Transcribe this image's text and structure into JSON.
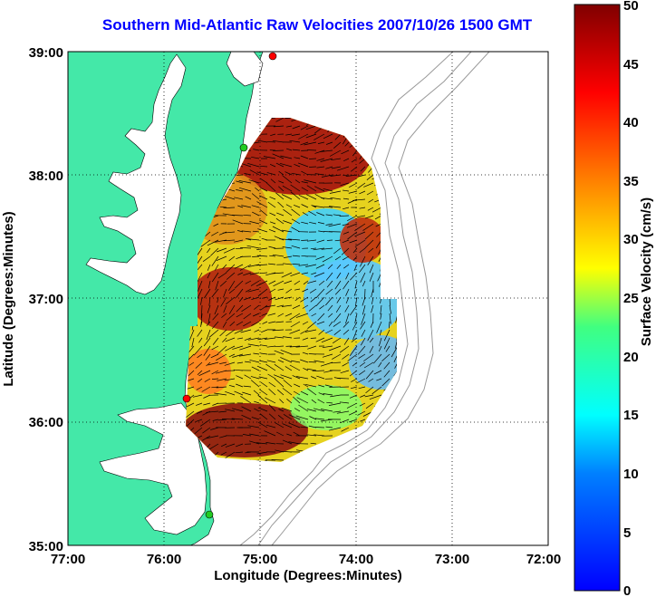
{
  "title": "Southern Mid-Atlantic Raw Velocities 2007/10/26 1500 GMT",
  "map": {
    "xlabel": "Longitude (Degrees:Minutes)",
    "ylabel": "Latitude (Degrees:Minutes)",
    "lon_range": [
      -77,
      -72
    ],
    "lat_range": [
      35,
      39
    ],
    "x_ticks": [
      "77:00",
      "76:00",
      "75:00",
      "74:00",
      "73:00",
      "72:00"
    ],
    "y_ticks": [
      "35:00",
      "36:00",
      "37:00",
      "38:00",
      "39:00"
    ],
    "grid": "dotted",
    "land_color": "#44e8a8",
    "water_color": "#ffffff"
  },
  "colorbar": {
    "label": "Surface Velocity (cm/s)",
    "ticks": [
      "0",
      "5",
      "10",
      "15",
      "20",
      "25",
      "30",
      "35",
      "40",
      "45",
      "50"
    ],
    "range": [
      0,
      50
    ],
    "colormap": "jet"
  },
  "stations": [
    {
      "lon": -75.1,
      "lat": 39.0,
      "color": "#ff0000"
    },
    {
      "lon": -75.65,
      "lat": 38.25,
      "color": "#22cc22"
    },
    {
      "lon": -75.85,
      "lat": 36.2,
      "color": "#ff0000"
    },
    {
      "lon": -75.5,
      "lat": 35.25,
      "color": "#22cc22"
    }
  ]
}
